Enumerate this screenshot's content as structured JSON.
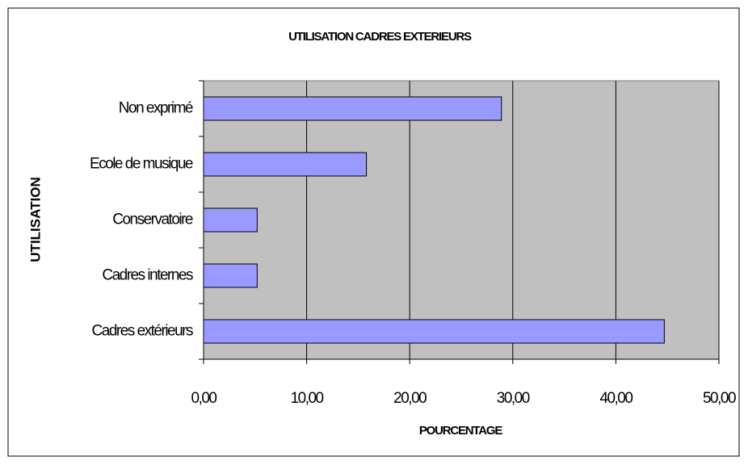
{
  "chart_data": {
    "type": "hbar",
    "title": "UTILISATION CADRES EXTERIEURS",
    "x_label": "POURCENTAGE",
    "y_label": "UTILISATION",
    "categories": [
      "Non exprimé",
      "Ecole de musique",
      "Conservatoire",
      "Cadres internes",
      "Cadres extérieurs"
    ],
    "values": [
      28.9,
      15.8,
      5.2,
      5.2,
      44.7
    ],
    "color": "#9999ff",
    "xlim": [
      0,
      50
    ],
    "xticks": [
      {
        "value": 0,
        "label": "0,00"
      },
      {
        "value": 10,
        "label": "10,00"
      },
      {
        "value": 20,
        "label": "20,00"
      },
      {
        "value": 30,
        "label": "30,00"
      },
      {
        "value": 40,
        "label": "40,00"
      },
      {
        "value": 50,
        "label": "50,00"
      }
    ],
    "grid": true
  }
}
